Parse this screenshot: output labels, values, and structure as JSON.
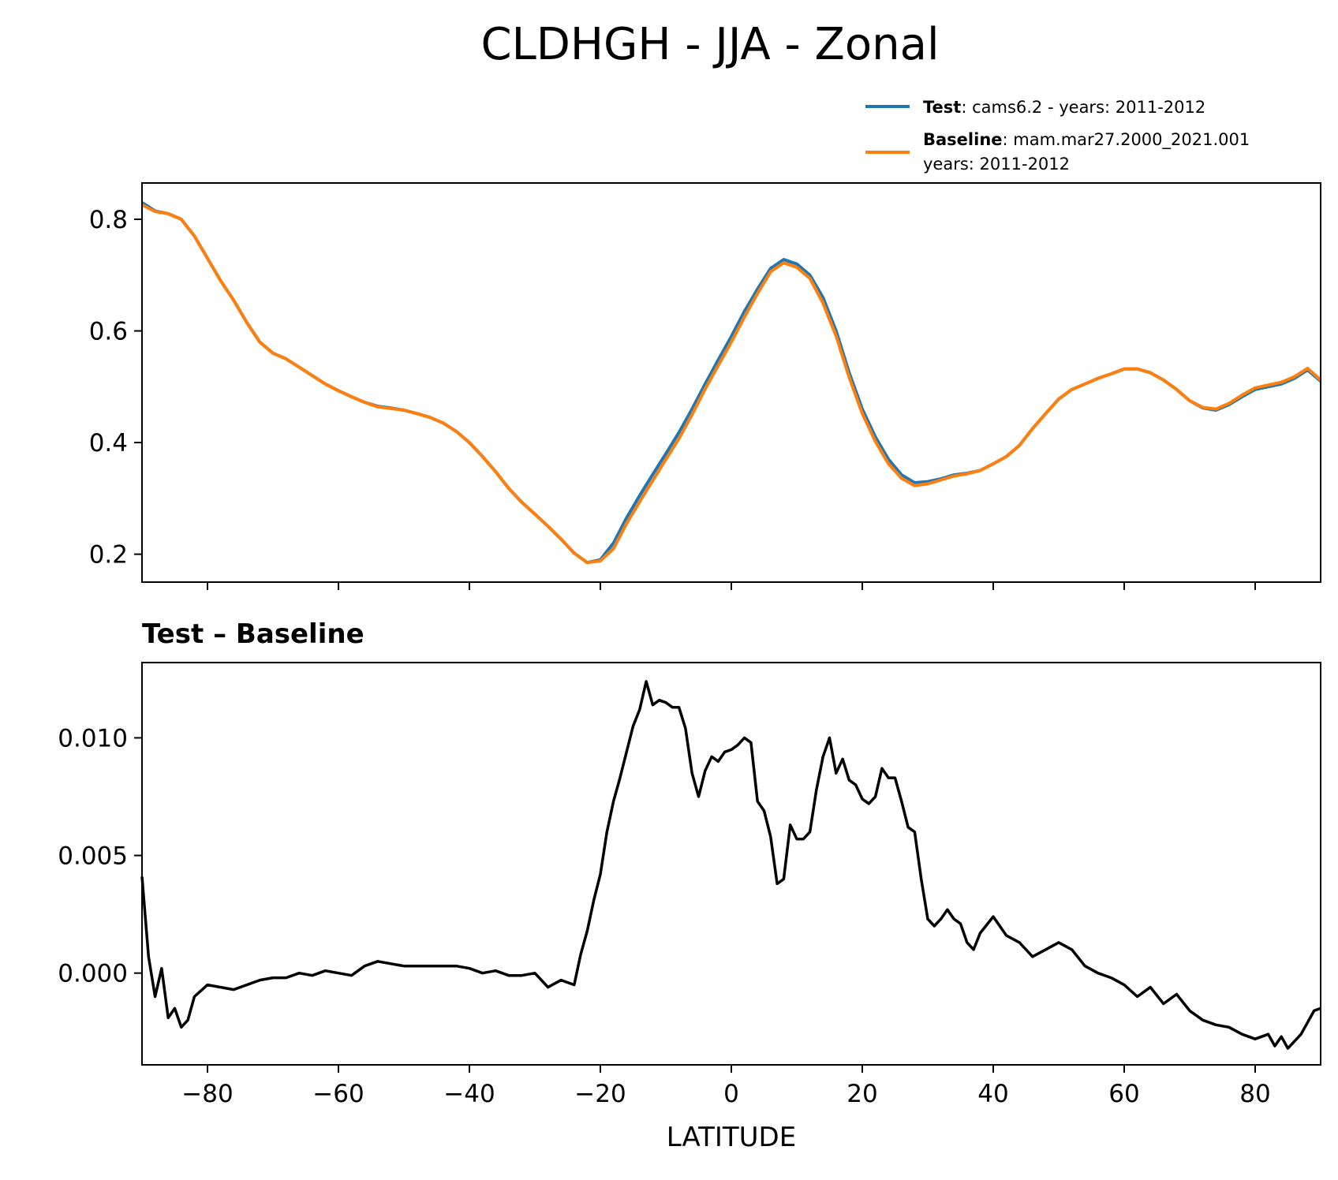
{
  "figure": {
    "title": "CLDHGH - JJA - Zonal"
  },
  "legend": {
    "placement": "top-right, above upper panel",
    "entries": [
      {
        "label_bold": "Test",
        "label_rest": ": cams6.2 - years: 2011-2012",
        "label_line2": "",
        "color": "#1f77b4"
      },
      {
        "label_bold": "Baseline",
        "label_rest": ": mam.mar27.2000_2021.001",
        "label_line2": "years: 2011-2012",
        "color": "#ff7f0e"
      }
    ]
  },
  "chart_data": [
    {
      "type": "line",
      "panel": "upper",
      "title": "",
      "xlabel": "",
      "ylabel": "",
      "xlim": [
        -90,
        90
      ],
      "ylim": [
        0.15,
        0.865
      ],
      "yticks": [
        0.2,
        0.4,
        0.6,
        0.8
      ],
      "ytick_labels": [
        "0.2",
        "0.4",
        "0.6",
        "0.8"
      ],
      "xticks": [
        -80,
        -60,
        -40,
        -20,
        0,
        20,
        40,
        60,
        80
      ],
      "grid": false,
      "x": [
        -90,
        -88,
        -86,
        -84,
        -82,
        -80,
        -78,
        -76,
        -74,
        -72,
        -70,
        -68,
        -66,
        -64,
        -62,
        -60,
        -58,
        -56,
        -54,
        -52,
        -50,
        -48,
        -46,
        -44,
        -42,
        -40,
        -38,
        -36,
        -34,
        -32,
        -30,
        -28,
        -26,
        -24,
        -22,
        -20,
        -18,
        -16,
        -14,
        -12,
        -10,
        -8,
        -6,
        -4,
        -2,
        0,
        2,
        4,
        6,
        8,
        10,
        12,
        14,
        16,
        18,
        20,
        22,
        24,
        26,
        28,
        30,
        32,
        34,
        36,
        38,
        40,
        42,
        44,
        46,
        48,
        50,
        52,
        54,
        56,
        58,
        60,
        62,
        64,
        66,
        68,
        70,
        72,
        74,
        76,
        78,
        80,
        82,
        84,
        86,
        88,
        90
      ],
      "series": [
        {
          "name": "Test",
          "color": "#1f77b4",
          "values": [
            0.83,
            0.815,
            0.81,
            0.8,
            0.77,
            0.73,
            0.69,
            0.655,
            0.615,
            0.58,
            0.56,
            0.55,
            0.535,
            0.52,
            0.505,
            0.493,
            0.482,
            0.472,
            0.465,
            0.462,
            0.458,
            0.452,
            0.445,
            0.435,
            0.42,
            0.4,
            0.375,
            0.348,
            0.318,
            0.293,
            0.272,
            0.25,
            0.227,
            0.202,
            0.185,
            0.19,
            0.22,
            0.265,
            0.305,
            0.343,
            0.38,
            0.418,
            0.46,
            0.505,
            0.548,
            0.59,
            0.635,
            0.675,
            0.712,
            0.728,
            0.72,
            0.7,
            0.66,
            0.6,
            0.525,
            0.46,
            0.41,
            0.37,
            0.342,
            0.328,
            0.33,
            0.335,
            0.342,
            0.345,
            0.35,
            0.362,
            0.375,
            0.395,
            0.425,
            0.452,
            0.478,
            0.495,
            0.505,
            0.515,
            0.523,
            0.532,
            0.532,
            0.525,
            0.512,
            0.495,
            0.475,
            0.462,
            0.458,
            0.468,
            0.482,
            0.495,
            0.5,
            0.505,
            0.515,
            0.53,
            0.51
          ]
        },
        {
          "name": "Baseline",
          "color": "#ff7f0e",
          "values": [
            0.826,
            0.814,
            0.81,
            0.8,
            0.77,
            0.73,
            0.69,
            0.655,
            0.615,
            0.58,
            0.56,
            0.55,
            0.535,
            0.52,
            0.505,
            0.493,
            0.482,
            0.472,
            0.464,
            0.461,
            0.458,
            0.452,
            0.445,
            0.435,
            0.42,
            0.4,
            0.375,
            0.348,
            0.318,
            0.293,
            0.272,
            0.25,
            0.227,
            0.202,
            0.185,
            0.188,
            0.21,
            0.255,
            0.294,
            0.332,
            0.37,
            0.407,
            0.45,
            0.496,
            0.538,
            0.58,
            0.625,
            0.667,
            0.706,
            0.722,
            0.714,
            0.694,
            0.65,
            0.591,
            0.517,
            0.452,
            0.402,
            0.362,
            0.336,
            0.323,
            0.326,
            0.333,
            0.34,
            0.344,
            0.35,
            0.362,
            0.375,
            0.395,
            0.425,
            0.452,
            0.478,
            0.495,
            0.505,
            0.515,
            0.523,
            0.532,
            0.532,
            0.525,
            0.512,
            0.495,
            0.475,
            0.463,
            0.46,
            0.47,
            0.485,
            0.498,
            0.503,
            0.508,
            0.518,
            0.533,
            0.512
          ]
        }
      ]
    },
    {
      "type": "line",
      "panel": "lower",
      "title": "Test – Baseline",
      "xlabel": "LATITUDE",
      "ylabel": "",
      "xlim": [
        -90,
        90
      ],
      "ylim": [
        -0.0039,
        0.0132
      ],
      "yticks": [
        0.0,
        0.005,
        0.01
      ],
      "ytick_labels": [
        "0.000",
        "0.005",
        "0.010"
      ],
      "xticks": [
        -80,
        -60,
        -40,
        -20,
        0,
        20,
        40,
        60,
        80
      ],
      "xtick_labels": [
        "−80",
        "−60",
        "−40",
        "−20",
        "0",
        "20",
        "40",
        "60",
        "80"
      ],
      "grid": false,
      "x": [
        -90,
        -89,
        -88,
        -87,
        -86,
        -85,
        -84,
        -83,
        -82,
        -80,
        -78,
        -76,
        -74,
        -72,
        -70,
        -68,
        -66,
        -64,
        -62,
        -60,
        -58,
        -56,
        -54,
        -52,
        -50,
        -48,
        -46,
        -44,
        -42,
        -40,
        -38,
        -36,
        -34,
        -32,
        -30,
        -28,
        -26,
        -24,
        -23,
        -22,
        -21,
        -20,
        -19,
        -18,
        -17,
        -16,
        -15,
        -14,
        -13,
        -12,
        -11,
        -10,
        -9,
        -8,
        -7,
        -6,
        -5,
        -4,
        -3,
        -2,
        -1,
        0,
        1,
        2,
        3,
        4,
        5,
        6,
        7,
        8,
        9,
        10,
        11,
        12,
        13,
        14,
        15,
        16,
        17,
        18,
        19,
        20,
        21,
        22,
        23,
        24,
        25,
        26,
        27,
        28,
        29,
        30,
        31,
        32,
        33,
        34,
        35,
        36,
        37,
        38,
        40,
        42,
        44,
        46,
        48,
        50,
        52,
        54,
        56,
        58,
        60,
        62,
        64,
        66,
        68,
        70,
        72,
        74,
        76,
        78,
        80,
        82,
        83,
        84,
        85,
        86,
        87,
        88,
        89,
        90
      ],
      "series": [
        {
          "name": "",
          "color": "#000000",
          "values": [
            0.0041,
            0.0007,
            -0.001,
            0.0002,
            -0.0019,
            -0.0015,
            -0.0023,
            -0.002,
            -0.001,
            -0.0005,
            -0.0006,
            -0.0007,
            -0.0005,
            -0.0003,
            -0.0002,
            -0.0002,
            0.0,
            -0.0001,
            0.0001,
            0.0,
            -0.0001,
            0.0003,
            0.0005,
            0.0004,
            0.0003,
            0.0003,
            0.0003,
            0.0003,
            0.0003,
            0.0002,
            0.0,
            0.0001,
            -0.0001,
            -0.0001,
            0.0,
            -0.0006,
            -0.0003,
            -0.0005,
            0.0008,
            0.0018,
            0.0031,
            0.0042,
            0.006,
            0.0073,
            0.0083,
            0.0094,
            0.0105,
            0.0112,
            0.0124,
            0.0114,
            0.0116,
            0.0115,
            0.0113,
            0.0113,
            0.0104,
            0.0085,
            0.0075,
            0.0086,
            0.0092,
            0.009,
            0.0094,
            0.0095,
            0.0097,
            0.01,
            0.0098,
            0.0073,
            0.0069,
            0.0058,
            0.0038,
            0.004,
            0.0063,
            0.0057,
            0.0057,
            0.006,
            0.0078,
            0.0092,
            0.01,
            0.0085,
            0.0091,
            0.0082,
            0.008,
            0.0074,
            0.0072,
            0.0075,
            0.0087,
            0.0083,
            0.0083,
            0.0073,
            0.0062,
            0.006,
            0.004,
            0.0023,
            0.002,
            0.0023,
            0.0027,
            0.0023,
            0.0021,
            0.0013,
            0.001,
            0.0017,
            0.0024,
            0.0016,
            0.0013,
            0.0007,
            0.001,
            0.0013,
            0.001,
            0.0003,
            0.0,
            -0.0002,
            -0.0005,
            -0.001,
            -0.0006,
            -0.0013,
            -0.0009,
            -0.0016,
            -0.002,
            -0.0022,
            -0.0023,
            -0.0026,
            -0.0028,
            -0.0026,
            -0.0031,
            -0.0027,
            -0.0032,
            -0.0029,
            -0.0026,
            -0.0021,
            -0.0016,
            -0.0015
          ]
        }
      ]
    }
  ]
}
